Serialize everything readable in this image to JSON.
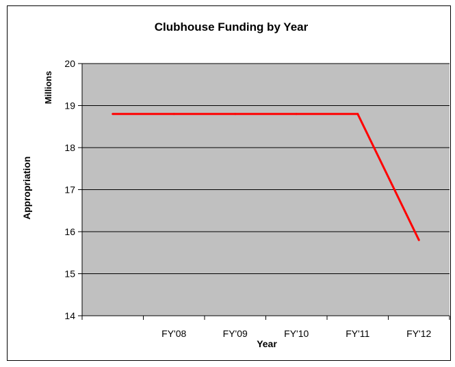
{
  "chart_data": {
    "type": "line",
    "title": "Clubhouse Funding by Year",
    "xlabel": "Year",
    "ylabel": "Appropriation",
    "yunits": "Millions",
    "categories": [
      "",
      "FY'08",
      "FY'09",
      "FY'10",
      "FY'11",
      "FY'12"
    ],
    "yticks": [
      14,
      15,
      16,
      17,
      18,
      19,
      20
    ],
    "ylim": [
      14,
      20
    ],
    "grid": true,
    "legend": false,
    "colors": {
      "plot_bg": "#c0c0c0",
      "line": "#ff0000"
    },
    "series": [
      {
        "values": [
          18.8,
          18.8,
          18.8,
          18.8,
          18.8,
          15.8
        ]
      }
    ]
  }
}
